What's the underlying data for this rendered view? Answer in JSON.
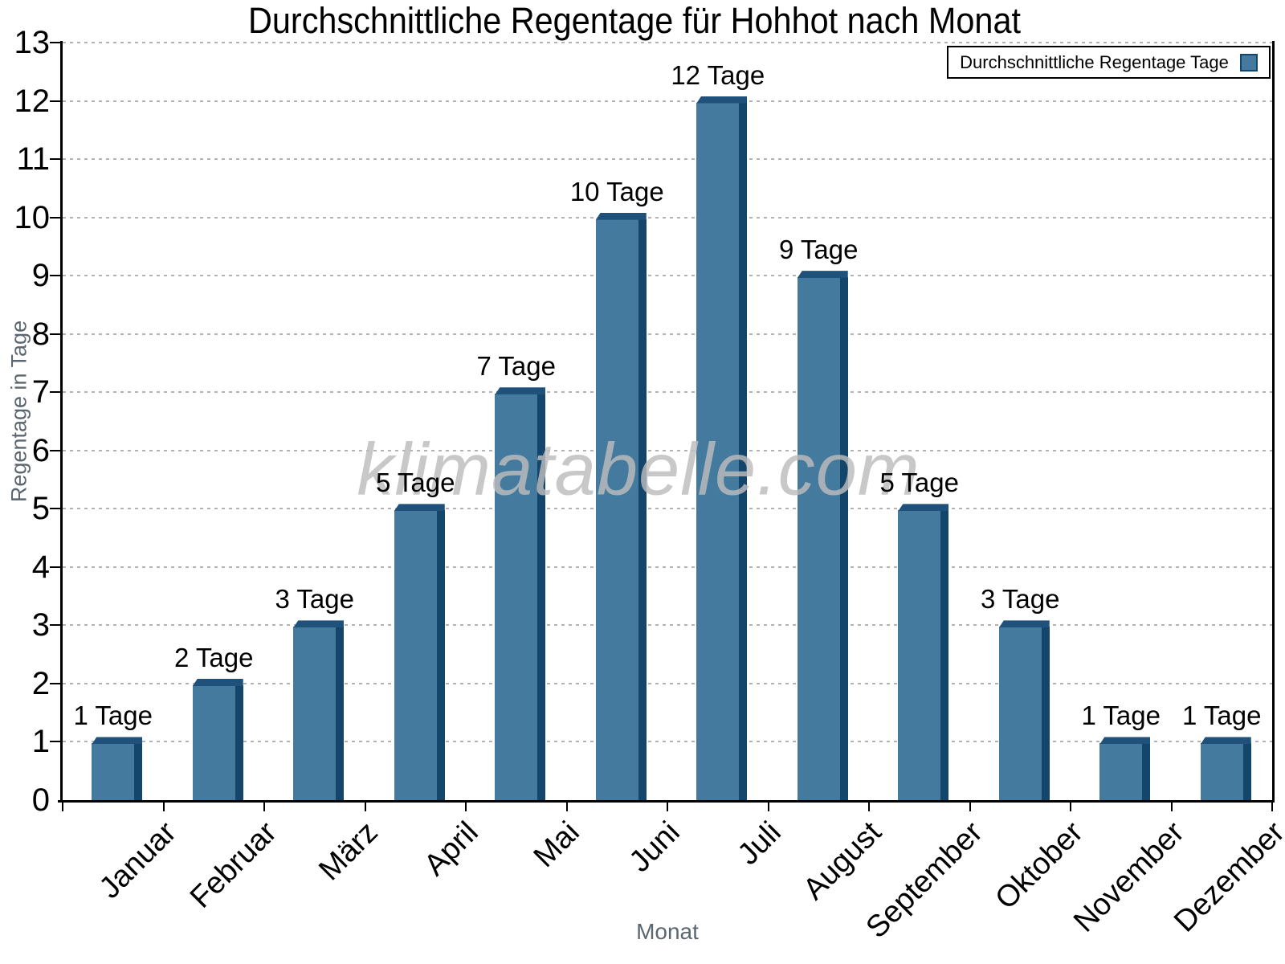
{
  "chart_data": {
    "type": "bar",
    "title": "Durchschnittliche Regentage für Hohhot nach Monat",
    "xlabel": "Monat",
    "ylabel": "Regentage in Tage",
    "legend_label": "Durchschnittliche Regentage Tage",
    "legend_position": "top-right",
    "watermark": "klimatabelle.com",
    "categories": [
      "Januar",
      "Februar",
      "März",
      "April",
      "Mai",
      "Juni",
      "Juli",
      "August",
      "September",
      "Oktober",
      "November",
      "Dezember"
    ],
    "values": [
      1,
      2,
      3,
      5,
      7,
      10,
      12,
      9,
      5,
      3,
      1,
      1
    ],
    "value_label_suffix": " Tage",
    "bar_labels": [
      "1 Tage",
      "2 Tage",
      "3 Tage",
      "5 Tage",
      "7 Tage",
      "10 Tage",
      "12 Tage",
      "9 Tage",
      "5 Tage",
      "3 Tage",
      "1 Tage",
      "1 Tage"
    ],
    "ylim": [
      0,
      13
    ],
    "y_ticks": [
      0,
      1,
      2,
      3,
      4,
      5,
      6,
      7,
      8,
      9,
      10,
      11,
      12,
      13
    ],
    "grid": "horizontal-dashed",
    "colors": {
      "bar_face": "#447A9E",
      "bar_side": "#14456A",
      "bar_top": "#1F517A",
      "gridline": "#b3b3b3",
      "axis": "#000000",
      "tick_text": "#000000",
      "muted_text": "#5b6670",
      "watermark": "#bdbdbd",
      "legend_border": "#000000",
      "background": "#ffffff"
    }
  }
}
